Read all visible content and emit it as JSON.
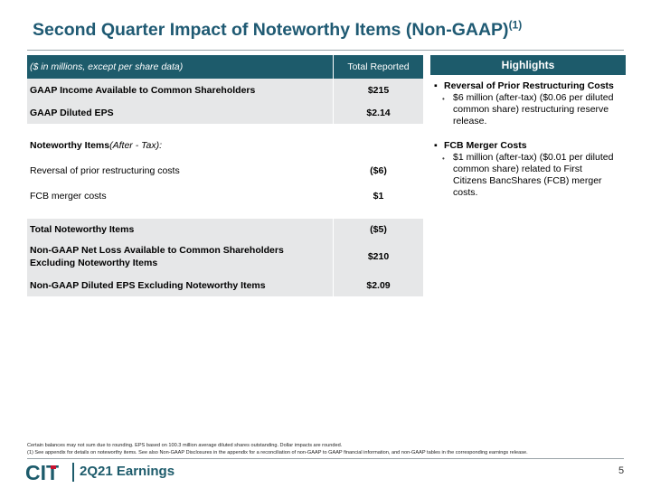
{
  "slide": {
    "title": "Second Quarter Impact of Noteworthy Items (Non-GAAP)",
    "title_sup": "(1)",
    "page_number": "5"
  },
  "table": {
    "header_label": "($ in millions, except per share data)",
    "header_value": "Total Reported",
    "rows": [
      {
        "label": "GAAP Income Available to Common Shareholders",
        "value": "$215"
      },
      {
        "label": "GAAP Diluted EPS",
        "value": "$2.14"
      },
      {
        "label": "Noteworthy Items",
        "label_suffix": " (After - Tax):",
        "value": ""
      },
      {
        "label": "Reversal of prior restructuring costs",
        "value": "($6)"
      },
      {
        "label": "FCB merger costs",
        "value": "$1"
      },
      {
        "label": "Total Noteworthy Items",
        "value": "($5)"
      },
      {
        "label": "Non-GAAP Net Loss Available to Common Shareholders Excluding Noteworthy Items",
        "value": "$210"
      },
      {
        "label": "Non-GAAP Diluted EPS Excluding Noteworthy Items",
        "value": "$2.09"
      }
    ]
  },
  "highlights": {
    "title": "Highlights",
    "items": [
      {
        "heading": "Reversal of Prior Restructuring Costs",
        "detail": "$6 million (after-tax) ($0.06 per diluted common share) restructuring reserve release."
      },
      {
        "heading": "FCB Merger Costs",
        "detail": "$1 million (after-tax) ($0.01 per diluted common share) related to First Citizens BancShares (FCB) merger costs."
      }
    ]
  },
  "footnotes": {
    "line1": "Certain balances may not sum due to rounding. EPS based on 100.3 million average diluted shares outstanding. Dollar impacts are rounded.",
    "line2": "(1)   See appendix for details on noteworthy items. See also Non-GAAP Disclosures in the appendix for a reconciliation of non-GAAP to GAAP financial information, and non-GAAP tables in the corresponding earnings release."
  },
  "footer": {
    "logo_text": "CIT",
    "label": "2Q21 Earnings"
  },
  "colors": {
    "brand": "#1d5b6b",
    "title": "#1f5a73",
    "accent_red": "#c8102e",
    "row_shade": "#e6e7e8"
  }
}
